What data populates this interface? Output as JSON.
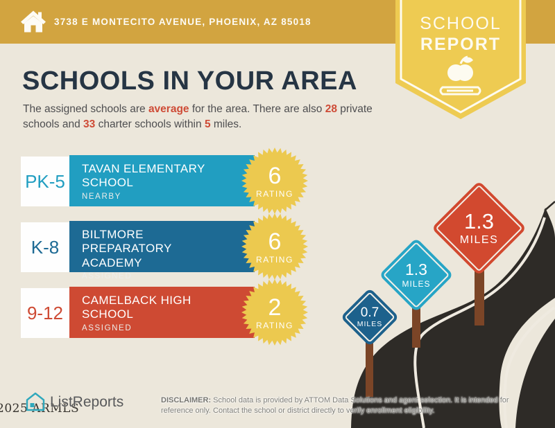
{
  "header": {
    "address": "3738 E MONTECITO AVENUE, PHOENIX, AZ 85018",
    "badge": {
      "line1": "SCHOOL",
      "line2": "REPORT"
    }
  },
  "title": "SCHOOLS IN YOUR AREA",
  "intro": {
    "part1": "The assigned schools are ",
    "highlight1": "average",
    "part2": " for the area. There are also ",
    "highlight2": "28",
    "part3": " private schools and ",
    "highlight3": "33",
    "part4": " charter schools within ",
    "highlight4": "5",
    "part5": " miles."
  },
  "schools": [
    {
      "grades": "PK-5",
      "name": "TAVAN ELEMENTARY SCHOOL",
      "status": "NEARBY",
      "rating": "6",
      "rating_label": "RATING",
      "color": "#219EC1"
    },
    {
      "grades": "K-8",
      "name": "BILTMORE PREPARATORY ACADEMY",
      "status": "ASSIGNED",
      "rating": "6",
      "rating_label": "RATING",
      "color": "#1D6A94"
    },
    {
      "grades": "9-12",
      "name": "CAMELBACK HIGH SCHOOL",
      "status": "ASSIGNED",
      "rating": "2",
      "rating_label": "RATING",
      "color": "#CE4A33"
    }
  ],
  "signs": [
    {
      "distance": "0.7",
      "unit": "MILES",
      "color": "#1D618C"
    },
    {
      "distance": "1.3",
      "unit": "MILES",
      "color": "#27A5C6"
    },
    {
      "distance": "1.3",
      "unit": "MILES",
      "color": "#D2492F"
    }
  ],
  "footer": {
    "logo_text": "ListReports",
    "watermark": "2025 ARMLS",
    "disclaimer_label": "DISCLAIMER:",
    "disclaimer_text": " School data is provided by ATTOM Data Solutions and agent selection. It is intended for reference only. Contact the school or district directly to verify enrollment eligibility."
  },
  "colors": {
    "header_gold": "#D2A440",
    "badge_yellow": "#EECB52",
    "background_cream": "#ECE7DB",
    "title_navy": "#263544",
    "accent_red": "#CE4B36",
    "starburst_yellow": "#ECC94F",
    "road_charcoal": "#2E2B27",
    "post_brown": "#7B4527"
  }
}
